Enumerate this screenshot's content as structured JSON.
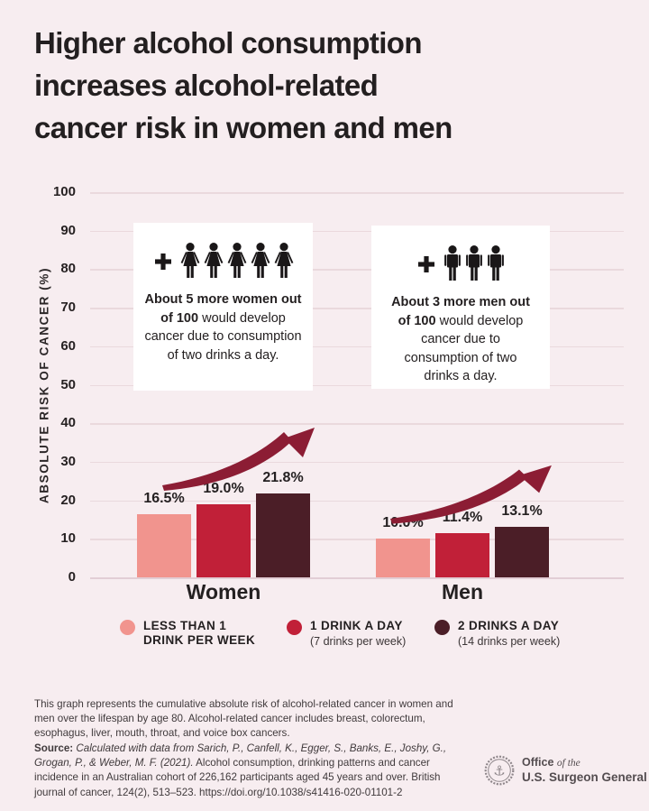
{
  "header": {
    "title_lines": [
      "Higher alcohol consumption",
      "increases alcohol-related",
      "cancer risk in women and men"
    ]
  },
  "chart_data": {
    "type": "bar",
    "title": "Higher alcohol consumption increases alcohol-related cancer risk in women and men",
    "xlabel": "",
    "ylabel": "ABSOLUTE RISK OF CANCER (%)",
    "ylim": [
      0,
      100
    ],
    "yticks": [
      0,
      10,
      20,
      30,
      40,
      50,
      60,
      70,
      80,
      90,
      100
    ],
    "grid": true,
    "legend_position": "bottom",
    "categories": [
      "Women",
      "Men"
    ],
    "series": [
      {
        "name": "LESS THAN 1 DRINK PER WEEK",
        "color": "#f1948e",
        "values": [
          16.5,
          10.0
        ],
        "labels": [
          "16.5%",
          "10.0%"
        ]
      },
      {
        "name": "1 DRINK A DAY (7 drinks per week)",
        "color": "#c12038",
        "values": [
          19.0,
          11.4
        ],
        "labels": [
          "19.0%",
          "11.4%"
        ]
      },
      {
        "name": "2 DRINKS A DAY (14 drinks per week)",
        "color": "#4b1e27",
        "values": [
          21.8,
          13.1
        ],
        "labels": [
          "21.8%",
          "13.1%"
        ]
      }
    ],
    "annotations": [
      "upward trend arrow over Women bars",
      "upward trend arrow over Men bars"
    ]
  },
  "callouts": {
    "women": {
      "icon_count": 5,
      "bold": "About 5 more women out of 100",
      "rest": "would develop cancer due to consumption of two drinks a day."
    },
    "men": {
      "icon_count": 3,
      "bold": "About 3 more men out of 100",
      "rest": "would develop cancer due to consumption of two drinks a day."
    }
  },
  "legend": {
    "items": [
      {
        "label": "LESS THAN 1 DRINK PER WEEK",
        "sublabel": "",
        "color": "#f1948e"
      },
      {
        "label": "1 DRINK A DAY",
        "sublabel": "(7 drinks per week)",
        "color": "#c12038"
      },
      {
        "label": "2 DRINKS A DAY",
        "sublabel": "(14 drinks per week)",
        "color": "#4b1e27"
      }
    ]
  },
  "footnote": "This graph represents the cumulative absolute risk of alcohol-related cancer in women and men over the lifespan by age 80. Alcohol-related cancer includes breast, colorectum, esophagus, liver, mouth, throat, and voice box cancers.",
  "source": {
    "label": "Source:",
    "citation": "Calculated with data from Sarich, P., Canfell, K., Egger, S., Banks, E., Joshy, G., Grogan, P., & Weber, M. F. (2021).",
    "rest": "Alcohol consumption, drinking patterns and cancer incidence in an Australian cohort of 226,162 participants aged 45 years and over. British journal of cancer, 124(2), 513–523. https://doi.org/10.1038/s41416-020-01101-2"
  },
  "logo": {
    "office": "Office",
    "of_the": "of the",
    "org": "U.S. Surgeon General"
  },
  "icons": {
    "plus": "plus-icon",
    "woman": "woman-icon",
    "man": "man-icon",
    "seal": "anchor-seal-icon"
  },
  "colors": {
    "background": "#f7edf0",
    "bar_pink": "#f1948e",
    "bar_red": "#c12038",
    "bar_dark": "#4b1e27",
    "arrow": "#8c1d34",
    "text": "#242021",
    "icon": "#1a1718",
    "gridline": "#ead9dd",
    "box": "#ffffff",
    "logo_gray": "#8e868a"
  }
}
